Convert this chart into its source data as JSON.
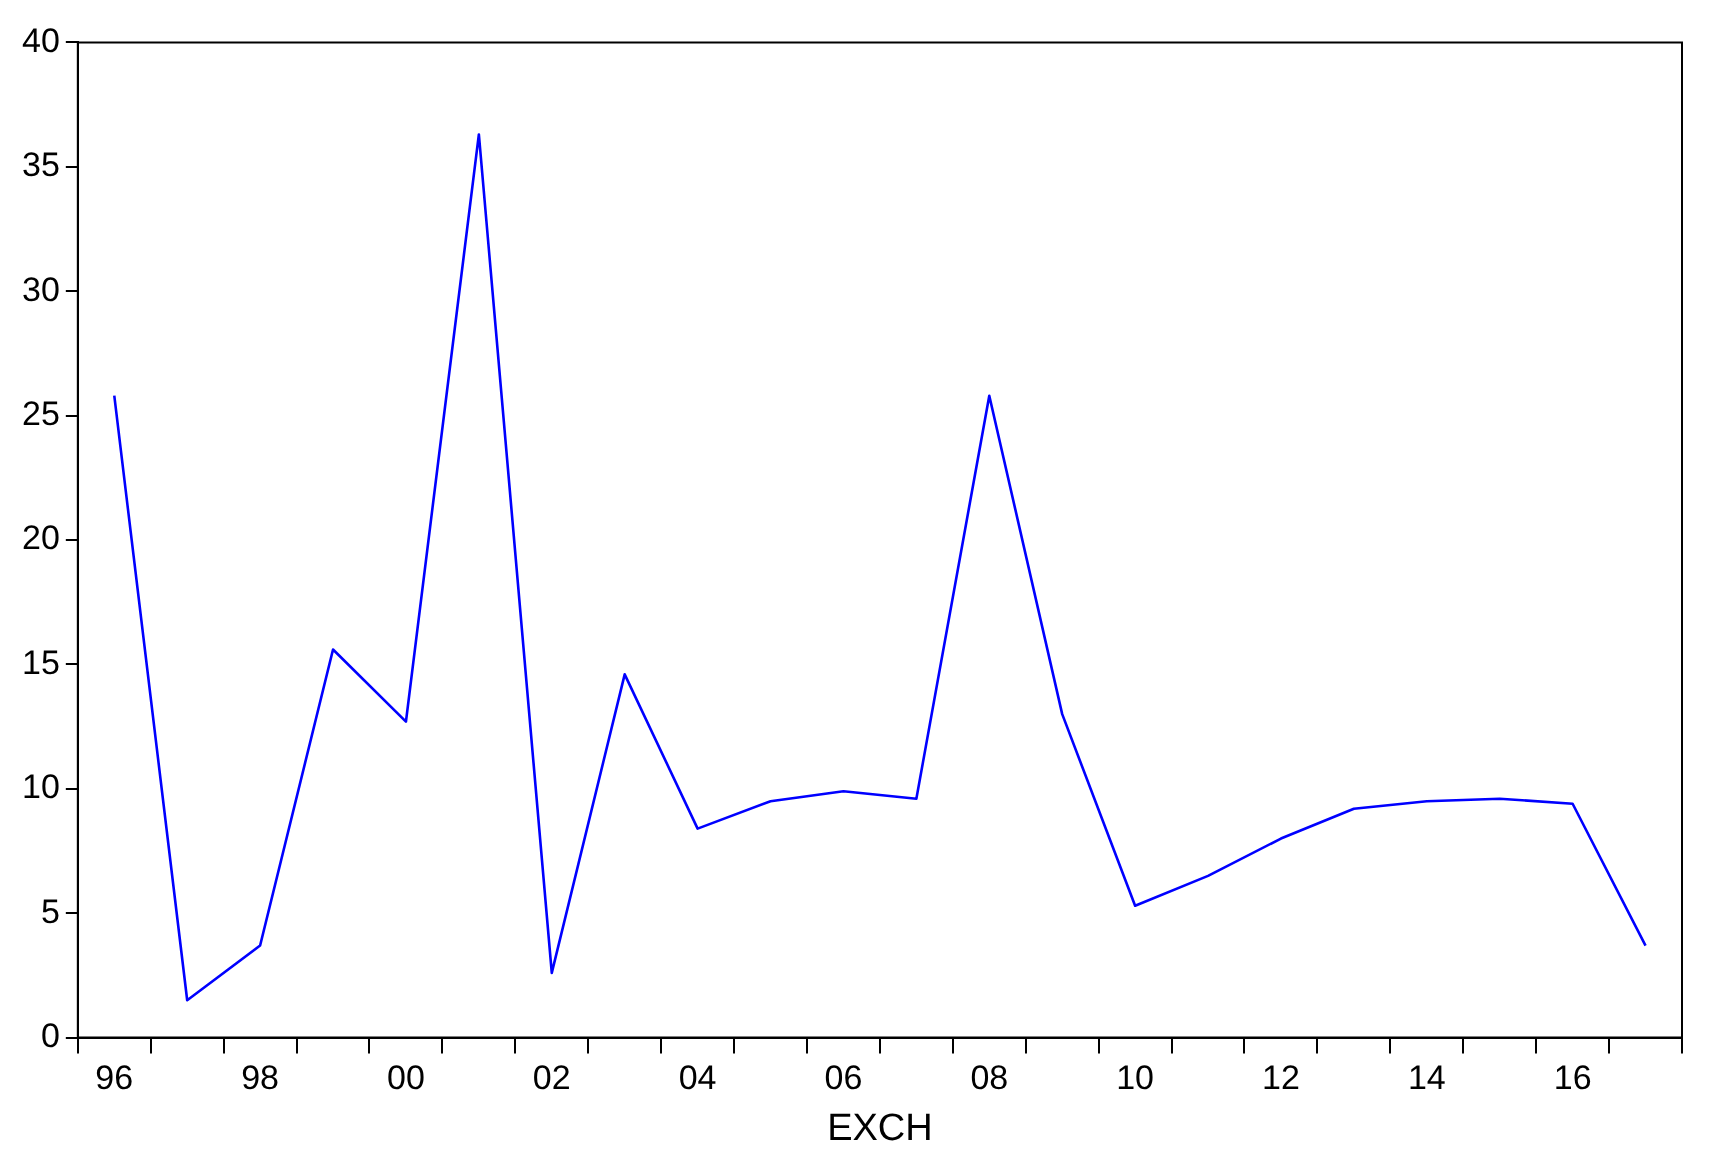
{
  "chart_data": {
    "type": "line",
    "xlabel": "EXCH",
    "categories": [
      "96",
      null,
      "98",
      null,
      "00",
      null,
      "02",
      null,
      "04",
      null,
      "06",
      null,
      "08",
      null,
      "10",
      null,
      "12",
      null,
      "14",
      null,
      "16",
      null
    ],
    "series": [
      {
        "color": "#0000ff",
        "values": [
          25.8,
          1.5,
          3.7,
          15.6,
          12.7,
          36.3,
          2.6,
          14.6,
          8.4,
          9.5,
          9.9,
          9.6,
          25.8,
          13.0,
          5.3,
          6.5,
          8.0,
          9.2,
          9.5,
          9.6,
          9.4,
          3.7
        ]
      }
    ],
    "ylim": [
      0,
      40
    ],
    "yticks": [
      0,
      5,
      10,
      15,
      20,
      25,
      30,
      35,
      40
    ],
    "grid": false,
    "legend": false,
    "marker": "none",
    "line_style": "solid"
  }
}
